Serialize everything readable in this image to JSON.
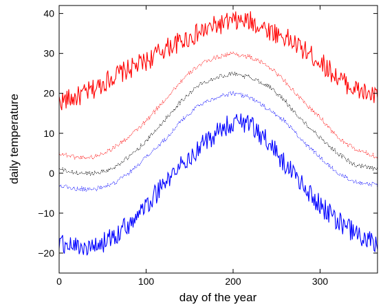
{
  "chart_data": {
    "type": "line",
    "title": "",
    "xlabel": "day of the year",
    "ylabel": "daily temperature",
    "xlim": [
      0,
      366
    ],
    "ylim": [
      -25,
      42
    ],
    "xticks": [
      0,
      100,
      200,
      300
    ],
    "yticks": [
      -20,
      -10,
      0,
      10,
      20,
      30,
      40
    ],
    "grid": false,
    "legend": "none",
    "series": [
      {
        "color": "#ff0000",
        "style": "solid",
        "x": [
          0,
          20,
          40,
          60,
          80,
          100,
          120,
          140,
          160,
          180,
          200,
          220,
          240,
          260,
          280,
          300,
          320,
          340,
          366
        ],
        "y": [
          18,
          19,
          21,
          24,
          26,
          28,
          31,
          33,
          35,
          37,
          38,
          38,
          36,
          34,
          31,
          28,
          24,
          21,
          19
        ]
      },
      {
        "color": "#ff0000",
        "style": "dotted",
        "x": [
          0,
          20,
          40,
          60,
          80,
          100,
          120,
          140,
          160,
          180,
          200,
          220,
          240,
          260,
          280,
          300,
          320,
          340,
          366
        ],
        "y": [
          5,
          4,
          4,
          6,
          9,
          13,
          18,
          23,
          27,
          29,
          30,
          29,
          27,
          23,
          18,
          14,
          9,
          6,
          4
        ]
      },
      {
        "color": "#000000",
        "style": "dotted",
        "x": [
          0,
          20,
          40,
          60,
          80,
          100,
          120,
          140,
          160,
          180,
          200,
          220,
          240,
          260,
          280,
          300,
          320,
          340,
          366
        ],
        "y": [
          1,
          0,
          0,
          1,
          4,
          8,
          13,
          18,
          22,
          24,
          25,
          24,
          22,
          18,
          13,
          9,
          5,
          2,
          1
        ]
      },
      {
        "color": "#0000ff",
        "style": "dotted",
        "x": [
          0,
          20,
          40,
          60,
          80,
          100,
          120,
          140,
          160,
          180,
          200,
          220,
          240,
          260,
          280,
          300,
          320,
          340,
          366
        ],
        "y": [
          -3,
          -4,
          -4,
          -3,
          0,
          4,
          8,
          13,
          17,
          19,
          20,
          19,
          16,
          13,
          8,
          4,
          0,
          -2,
          -3
        ]
      },
      {
        "color": "#0000ff",
        "style": "solid",
        "x": [
          0,
          20,
          40,
          60,
          80,
          100,
          120,
          140,
          160,
          180,
          200,
          220,
          240,
          260,
          280,
          300,
          320,
          340,
          366
        ],
        "y": [
          -18,
          -18,
          -19,
          -16,
          -13,
          -8,
          -3,
          2,
          6,
          10,
          13,
          12,
          8,
          2,
          -3,
          -8,
          -12,
          -15,
          -18
        ]
      }
    ]
  }
}
